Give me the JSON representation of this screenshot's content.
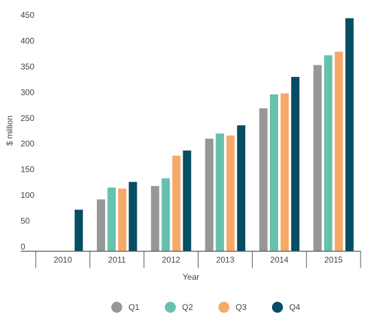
{
  "chart_data": {
    "type": "bar",
    "categories": [
      "2010",
      "2011",
      "2012",
      "2013",
      "2014",
      "2015"
    ],
    "series": [
      {
        "name": "Q1",
        "color": "#979797",
        "values": [
          null,
          100,
          126,
          218,
          277,
          361
        ]
      },
      {
        "name": "Q2",
        "color": "#67c1ad",
        "values": [
          null,
          123,
          141,
          228,
          304,
          380
        ]
      },
      {
        "name": "Q3",
        "color": "#f5aa6a",
        "values": [
          null,
          121,
          185,
          224,
          306,
          387
        ]
      },
      {
        "name": "Q4",
        "color": "#074d64",
        "values": [
          80,
          134,
          195,
          244,
          338,
          452
        ]
      }
    ],
    "xlabel": "Year",
    "ylabel": "$ million",
    "ylim": [
      0,
      450
    ],
    "yticks": [
      0,
      50,
      100,
      150,
      200,
      250,
      300,
      350,
      400,
      450
    ],
    "grid": false,
    "legend": "bottom"
  }
}
